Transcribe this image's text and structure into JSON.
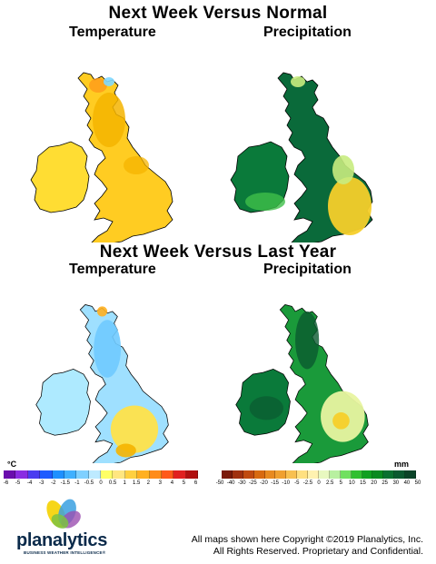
{
  "sections": [
    {
      "title": "Next Week Versus Normal",
      "left_label": "Temperature",
      "right_label": "Precipitation"
    },
    {
      "title": "Next Week Versus Last Year",
      "left_label": "Temperature",
      "right_label": "Precipitation"
    }
  ],
  "temperature_scale": {
    "unit": "°C",
    "ticks": [
      "-6",
      "-5",
      "-4",
      "-3",
      "-2",
      "-1.5",
      "-1",
      "-0.5",
      "0",
      "0.5",
      "1",
      "1.5",
      "2",
      "3",
      "4",
      "5",
      "6"
    ],
    "colors": [
      "#6a0dad",
      "#8a2be2",
      "#4b3cf0",
      "#1e5cff",
      "#1e90ff",
      "#3fb0ff",
      "#7fd0ff",
      "#bdeaff",
      "#ffff66",
      "#ffe680",
      "#ffd040",
      "#ffb020",
      "#ff8c1a",
      "#ff5a1a",
      "#e02020",
      "#b01010"
    ]
  },
  "precipitation_scale": {
    "unit": "mm",
    "ticks": [
      "-50",
      "-40",
      "-30",
      "-25",
      "-20",
      "-15",
      "-10",
      "-5",
      "-2.5",
      "0",
      "2.5",
      "5",
      "10",
      "15",
      "20",
      "25",
      "30",
      "40",
      "50"
    ],
    "colors": [
      "#7a1a0a",
      "#a0300f",
      "#c04a10",
      "#d86a10",
      "#e88a20",
      "#f0a030",
      "#f8c050",
      "#ffe080",
      "#fff2b0",
      "#e8f8c0",
      "#b8f0a0",
      "#70e060",
      "#30c030",
      "#10a020",
      "#0a8a20",
      "#0a7030",
      "#0a5a30",
      "#0a4428"
    ]
  },
  "logo": {
    "name": "planalytics",
    "tagline": "BUSINESS WEATHER INTELLIGENCE®"
  },
  "copyright": {
    "line1": "All maps shown here Copyright ©2019 Planalytics, Inc.",
    "line2": "All Rights Reserved. Proprietary and Confidential."
  },
  "colors": {
    "temp_warm": "#f5b400",
    "temp_cool": "#7fd8ff",
    "precip_wet": "#0a6a3a",
    "precip_dry": "#f5cf2a"
  }
}
